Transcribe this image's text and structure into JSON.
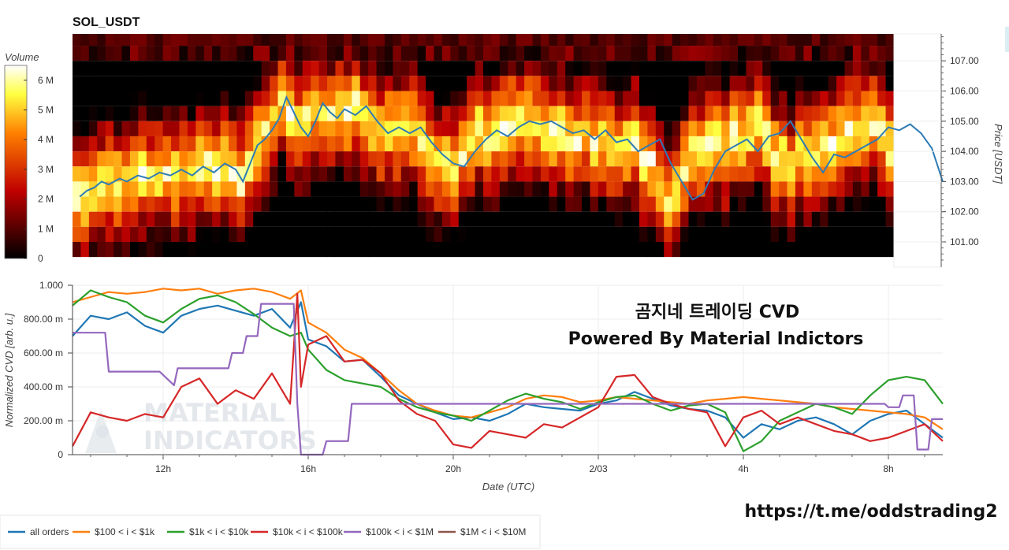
{
  "chart_data": [
    {
      "type": "heatmap",
      "title": "SOL_USDT",
      "colorbar": {
        "label": "Volume",
        "min": 0,
        "max": 6500000,
        "ticks": [
          "0",
          "1 M",
          "2 M",
          "3 M",
          "4 M",
          "5 M",
          "6 M"
        ]
      },
      "price_bands": [
        107.5,
        107.0,
        106.5,
        106.0,
        105.5,
        105.0,
        104.5,
        104.0,
        103.5,
        103.0,
        102.5,
        102.0,
        101.5,
        101.0,
        100.5
      ],
      "ylabel_right": "Price [USDT]",
      "yticks_right": [
        "101.00",
        "102.00",
        "103.00",
        "104.00",
        "105.00",
        "106.00",
        "107.00"
      ],
      "ylim": [
        100.2,
        107.9
      ],
      "price_series": {
        "name": "Price",
        "x_hours": [
          9.7,
          9.9,
          10.1,
          10.3,
          10.5,
          10.8,
          11.0,
          11.3,
          11.6,
          11.9,
          12.2,
          12.5,
          12.8,
          13.1,
          13.4,
          13.7,
          14.0,
          14.2,
          14.4,
          14.6,
          14.8,
          15.0,
          15.2,
          15.4,
          15.6,
          15.8,
          16.0,
          16.2,
          16.4,
          16.6,
          16.8,
          17.0,
          17.3,
          17.6,
          17.9,
          18.2,
          18.5,
          18.8,
          19.1,
          19.4,
          19.7,
          20.0,
          20.3,
          20.6,
          20.9,
          21.2,
          21.5,
          21.8,
          22.1,
          22.4,
          22.7,
          23.0,
          23.3,
          23.6,
          23.9,
          24.2,
          24.5,
          24.8,
          25.1,
          25.4,
          25.7,
          26.0,
          26.3,
          26.6,
          26.9,
          27.2,
          27.5,
          27.8,
          28.1,
          28.4,
          28.7,
          29.0,
          29.3,
          29.6,
          29.9,
          30.2,
          30.5,
          30.8,
          31.1,
          31.4,
          31.7,
          32.0,
          32.3,
          32.6,
          32.9,
          33.2,
          33.5
        ],
        "values": [
          102.5,
          102.7,
          102.8,
          103.0,
          102.9,
          103.1,
          103.0,
          103.2,
          103.1,
          103.3,
          103.2,
          103.4,
          103.2,
          103.5,
          103.3,
          103.6,
          103.4,
          103.0,
          103.6,
          104.2,
          104.4,
          104.7,
          105.1,
          105.8,
          105.3,
          104.8,
          104.5,
          105.0,
          105.6,
          105.3,
          105.1,
          105.4,
          105.2,
          105.5,
          105.0,
          104.6,
          104.8,
          104.6,
          104.8,
          104.3,
          103.9,
          103.6,
          103.5,
          104.0,
          104.4,
          104.7,
          104.5,
          104.8,
          105.0,
          104.9,
          105.0,
          104.8,
          104.6,
          104.7,
          104.4,
          104.7,
          104.3,
          104.4,
          104.0,
          104.2,
          104.4,
          103.6,
          103.0,
          102.4,
          102.6,
          103.4,
          104.0,
          104.2,
          104.4,
          104.0,
          104.5,
          104.6,
          105.0,
          104.4,
          103.8,
          103.3,
          103.9,
          103.8,
          104.0,
          104.2,
          104.4,
          104.8,
          104.7,
          104.9,
          104.6,
          104.1,
          103.0
        ]
      }
    },
    {
      "type": "line",
      "xlabel": "Date (UTC)",
      "ylabel": "Normalized CVD [arb. u.]",
      "xticks": [
        "12h",
        "16h",
        "20h",
        "2/03",
        "4h",
        "8h"
      ],
      "xtick_hours": [
        12,
        16,
        20,
        24,
        28,
        32
      ],
      "xlim": [
        9.5,
        33.5
      ],
      "ylim": [
        0,
        1.0
      ],
      "yticks": [
        "0",
        "200.00 m",
        "400.00 m",
        "600.00 m",
        "800.00 m",
        "1.000"
      ],
      "legend_position": "bottom-left",
      "series": [
        {
          "name": "all orders",
          "color": "#1f77b4",
          "x": [
            9.5,
            10.0,
            10.5,
            11.0,
            11.5,
            12.0,
            12.5,
            13.0,
            13.5,
            14.0,
            14.5,
            15.0,
            15.5,
            15.8,
            16.0,
            16.5,
            17.0,
            17.5,
            18.0,
            18.5,
            19.0,
            19.5,
            20.0,
            20.5,
            21.0,
            21.5,
            22.0,
            22.5,
            23.0,
            23.5,
            24.0,
            24.5,
            25.0,
            25.5,
            26.0,
            26.5,
            27.0,
            27.5,
            28.0,
            28.5,
            29.0,
            29.5,
            30.0,
            30.5,
            31.0,
            31.5,
            32.0,
            32.5,
            33.0,
            33.5
          ],
          "y": [
            0.7,
            0.82,
            0.8,
            0.84,
            0.76,
            0.72,
            0.82,
            0.86,
            0.88,
            0.85,
            0.82,
            0.86,
            0.75,
            0.9,
            0.68,
            0.64,
            0.55,
            0.56,
            0.46,
            0.35,
            0.3,
            0.25,
            0.21,
            0.22,
            0.2,
            0.24,
            0.3,
            0.28,
            0.27,
            0.26,
            0.3,
            0.32,
            0.37,
            0.33,
            0.29,
            0.27,
            0.26,
            0.22,
            0.1,
            0.18,
            0.15,
            0.2,
            0.22,
            0.18,
            0.12,
            0.2,
            0.24,
            0.26,
            0.18,
            0.1
          ]
        },
        {
          "name": "$100 < i < $1k",
          "color": "#ff7f0e",
          "x": [
            9.5,
            10.0,
            10.5,
            11.0,
            11.5,
            12.0,
            12.5,
            13.0,
            13.5,
            14.0,
            14.5,
            15.0,
            15.5,
            15.8,
            16.0,
            16.5,
            17.0,
            17.5,
            18.0,
            18.5,
            19.0,
            19.5,
            20.0,
            20.5,
            21.0,
            21.5,
            22.0,
            22.5,
            23.0,
            23.5,
            24.0,
            24.5,
            25.0,
            25.5,
            26.0,
            26.5,
            27.0,
            27.5,
            28.0,
            28.5,
            29.0,
            29.5,
            30.0,
            30.5,
            31.0,
            31.5,
            32.0,
            32.5,
            33.0,
            33.5
          ],
          "y": [
            0.9,
            0.93,
            0.96,
            0.95,
            0.96,
            0.98,
            0.97,
            0.98,
            0.95,
            0.97,
            0.98,
            0.96,
            0.92,
            0.97,
            0.78,
            0.72,
            0.62,
            0.57,
            0.48,
            0.38,
            0.3,
            0.26,
            0.23,
            0.22,
            0.25,
            0.28,
            0.33,
            0.35,
            0.34,
            0.31,
            0.32,
            0.34,
            0.33,
            0.32,
            0.31,
            0.3,
            0.32,
            0.33,
            0.34,
            0.33,
            0.32,
            0.31,
            0.3,
            0.28,
            0.27,
            0.26,
            0.25,
            0.24,
            0.22,
            0.15
          ]
        },
        {
          "name": "$1k < i < $10k",
          "color": "#2ca02c",
          "x": [
            9.5,
            10.0,
            10.5,
            11.0,
            11.5,
            12.0,
            12.5,
            13.0,
            13.5,
            14.0,
            14.5,
            15.0,
            15.5,
            15.8,
            16.0,
            16.5,
            17.0,
            17.5,
            18.0,
            18.5,
            19.0,
            19.5,
            20.0,
            20.5,
            21.0,
            21.5,
            22.0,
            22.5,
            23.0,
            23.5,
            24.0,
            24.5,
            25.0,
            25.5,
            26.0,
            26.5,
            27.0,
            27.5,
            28.0,
            28.5,
            29.0,
            29.5,
            30.0,
            30.5,
            31.0,
            31.5,
            32.0,
            32.5,
            33.0,
            33.5
          ],
          "y": [
            0.88,
            0.97,
            0.93,
            0.9,
            0.82,
            0.78,
            0.86,
            0.92,
            0.94,
            0.9,
            0.83,
            0.75,
            0.7,
            0.72,
            0.62,
            0.5,
            0.44,
            0.42,
            0.4,
            0.33,
            0.28,
            0.25,
            0.23,
            0.2,
            0.26,
            0.32,
            0.36,
            0.33,
            0.31,
            0.27,
            0.31,
            0.34,
            0.35,
            0.3,
            0.26,
            0.29,
            0.3,
            0.25,
            0.02,
            0.08,
            0.2,
            0.25,
            0.3,
            0.28,
            0.24,
            0.35,
            0.44,
            0.46,
            0.44,
            0.3
          ]
        },
        {
          "name": "$10k < i < $100k",
          "color": "#d62728",
          "x": [
            9.5,
            10.0,
            10.5,
            11.0,
            11.5,
            12.0,
            12.5,
            13.0,
            13.5,
            14.0,
            14.5,
            15.0,
            15.5,
            15.7,
            15.8,
            16.0,
            16.5,
            17.0,
            17.5,
            18.0,
            18.5,
            19.0,
            19.5,
            20.0,
            20.5,
            21.0,
            21.5,
            22.0,
            22.5,
            23.0,
            23.5,
            24.0,
            24.5,
            25.0,
            25.5,
            26.0,
            26.5,
            27.0,
            27.5,
            28.0,
            28.5,
            29.0,
            29.5,
            30.0,
            30.5,
            31.0,
            31.5,
            32.0,
            32.5,
            33.0,
            33.5
          ],
          "y": [
            0.05,
            0.25,
            0.22,
            0.2,
            0.24,
            0.22,
            0.4,
            0.45,
            0.3,
            0.38,
            0.33,
            0.48,
            0.3,
            0.95,
            0.4,
            0.65,
            0.7,
            0.55,
            0.56,
            0.48,
            0.32,
            0.24,
            0.2,
            0.06,
            0.04,
            0.14,
            0.12,
            0.1,
            0.18,
            0.16,
            0.22,
            0.28,
            0.46,
            0.47,
            0.34,
            0.3,
            0.27,
            0.25,
            0.05,
            0.22,
            0.26,
            0.18,
            0.22,
            0.18,
            0.14,
            0.12,
            0.08,
            0.1,
            0.14,
            0.18,
            0.08
          ]
        },
        {
          "name": "$100k < i < $1M",
          "color": "#9467bd",
          "x": [
            9.5,
            10.4,
            10.5,
            11.8,
            11.9,
            12.3,
            12.4,
            13.8,
            13.9,
            14.2,
            14.3,
            14.6,
            14.7,
            15.5,
            15.6,
            15.7,
            15.8,
            16.4,
            16.5,
            17.1,
            17.2,
            31.9,
            32.0,
            32.3,
            32.4,
            32.7,
            32.8,
            33.1,
            33.2,
            33.5
          ],
          "y": [
            0.72,
            0.72,
            0.49,
            0.49,
            0.49,
            0.41,
            0.51,
            0.51,
            0.6,
            0.6,
            0.7,
            0.7,
            0.89,
            0.89,
            0.89,
            0.3,
            0.0,
            0.0,
            0.08,
            0.08,
            0.3,
            0.3,
            0.28,
            0.28,
            0.35,
            0.35,
            0.03,
            0.03,
            0.21,
            0.21
          ]
        },
        {
          "name": "$1M < i < $10M",
          "color": "#8c564b",
          "x": [],
          "y": []
        }
      ]
    }
  ],
  "overlay_text": {
    "line1": "곰지네 트레이딩 CVD",
    "line2": "Powered By Material Indictors"
  },
  "watermark": {
    "line1": "MATERIAL",
    "line2": "INDICATORS"
  },
  "footer_url": "https://t.me/oddstrading2"
}
